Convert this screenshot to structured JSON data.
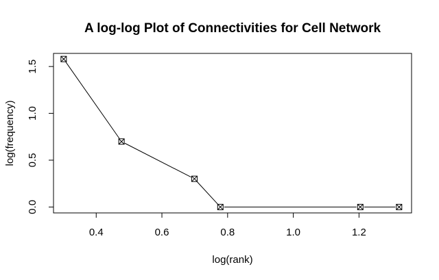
{
  "chart_data": {
    "type": "line",
    "title": "A log-log Plot of Connectivities for Cell Network",
    "xlabel": "log(rank)",
    "ylabel": "log(frequency)",
    "xlim": [
      0.27,
      1.36
    ],
    "ylim": [
      -0.063,
      1.64
    ],
    "x_ticks": [
      0.4,
      0.6,
      0.8,
      1.0,
      1.2
    ],
    "x_tick_labels": [
      "0.4",
      "0.6",
      "0.8",
      "1.0",
      "1.2"
    ],
    "y_ticks": [
      0.0,
      0.5,
      1.0,
      1.5
    ],
    "y_tick_labels": [
      "0.0",
      "0.5",
      "1.0",
      "1.5"
    ],
    "grid": false,
    "marker": "boxed-x",
    "series": [
      {
        "x": [
          0.301,
          0.477,
          0.699,
          0.778,
          1.204,
          1.322
        ],
        "y": [
          1.58,
          0.699,
          0.301,
          0.0,
          0.0,
          0.0
        ]
      }
    ]
  }
}
